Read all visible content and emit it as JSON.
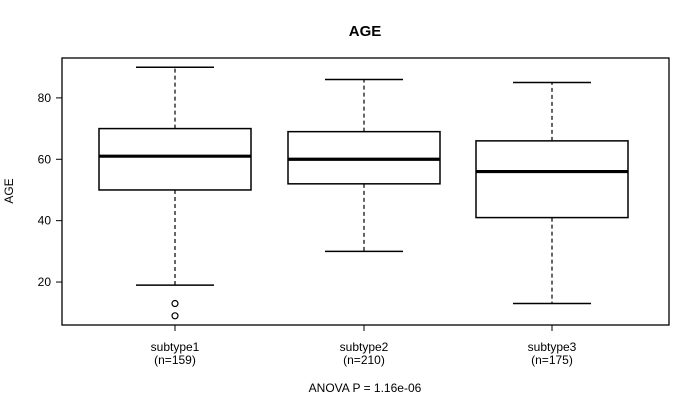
{
  "title": "AGE",
  "y_axis": {
    "label": "AGE",
    "ticks": [
      20,
      40,
      60,
      80
    ]
  },
  "x_axis": {
    "categories": [
      "subtype1",
      "subtype2",
      "subtype3"
    ],
    "sublabels": [
      "(n=159)",
      "(n=210)",
      "(n=175)"
    ]
  },
  "annotation": "ANOVA P = 1.16e-06",
  "colors": {
    "background": "#ffffff",
    "line": "#000000",
    "box_fill": "#ffffff",
    "text": "#000000"
  },
  "chart_data": {
    "type": "boxplot",
    "title": "AGE",
    "xlabel": "",
    "ylabel": "AGE",
    "ylim": [
      6,
      93
    ],
    "yticks": [
      20,
      40,
      60,
      80
    ],
    "grid": false,
    "categories": [
      "subtype1",
      "subtype2",
      "subtype3"
    ],
    "sample_sizes": [
      159,
      210,
      175
    ],
    "sublabels": [
      "(n=159)",
      "(n=210)",
      "(n=175)"
    ],
    "series": [
      {
        "name": "subtype1",
        "whisker_low": 19,
        "q1": 50,
        "median": 61,
        "q3": 70,
        "whisker_high": 90,
        "outliers": [
          13,
          9
        ]
      },
      {
        "name": "subtype2",
        "whisker_low": 30,
        "q1": 52,
        "median": 60,
        "q3": 69,
        "whisker_high": 86,
        "outliers": []
      },
      {
        "name": "subtype3",
        "whisker_low": 13,
        "q1": 41,
        "median": 56,
        "q3": 66,
        "whisker_high": 85,
        "outliers": []
      }
    ],
    "anova_p": "1.16e-06"
  }
}
